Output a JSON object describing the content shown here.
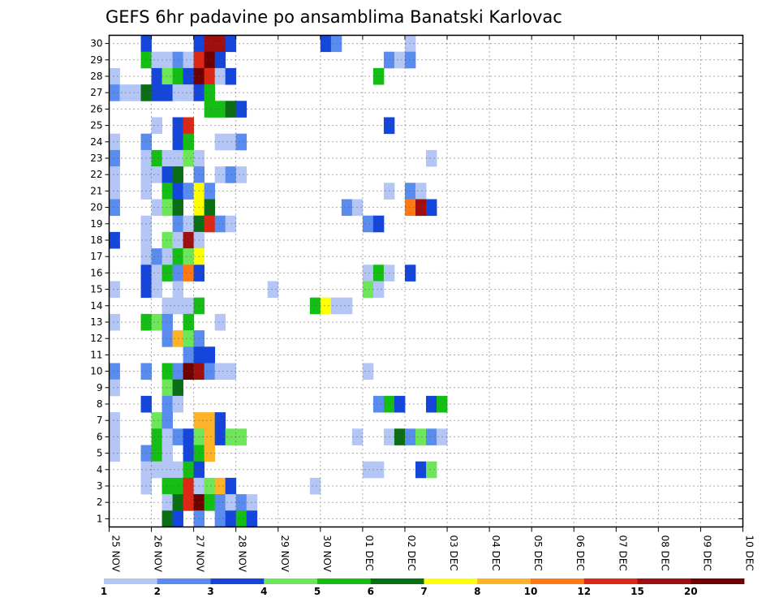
{
  "chart_data": {
    "type": "heatmap",
    "title": "GEFS 6hr padavine po ansamblima Banatski Karlovac",
    "x_tick_labels": [
      "25 NOV",
      "26 NOV",
      "27 NOV",
      "28 NOV",
      "29 NOV",
      "30 NOV",
      "01 DEC",
      "02 DEC",
      "03 DEC",
      "04 DEC",
      "05 DEC",
      "06 DEC",
      "07 DEC",
      "08 DEC",
      "09 DEC",
      "10 DEC"
    ],
    "y_tick_labels": [
      "1",
      "2",
      "3",
      "4",
      "5",
      "6",
      "7",
      "8",
      "9",
      "10",
      "11",
      "12",
      "13",
      "14",
      "15",
      "16",
      "17",
      "18",
      "19",
      "20",
      "21",
      "22",
      "23",
      "24",
      "25",
      "26",
      "27",
      "28",
      "29",
      "30"
    ],
    "time_steps_per_day": 4,
    "n_members": 30,
    "legend": {
      "labels": [
        "1",
        "2",
        "3",
        "4",
        "5",
        "6",
        "7",
        "8",
        "10",
        "12",
        "15",
        "20"
      ],
      "colors": [
        "#b4c6f5",
        "#5a8cf0",
        "#1446dc",
        "#6ee65a",
        "#14be14",
        "#0a6e14",
        "#ffff00",
        "#ffb428",
        "#ff7814",
        "#dc2814",
        "#a00f0f",
        "#6e0000"
      ]
    },
    "cells": [
      {
        "m": 30,
        "t": [
          [
            3,
            3
          ],
          [
            8,
            3
          ],
          [
            9,
            11
          ],
          [
            10,
            11
          ],
          [
            11,
            3
          ],
          [
            20,
            3
          ],
          [
            21,
            2
          ],
          [
            28,
            1
          ]
        ]
      },
      {
        "m": 29,
        "t": [
          [
            3,
            5
          ],
          [
            4,
            1
          ],
          [
            5,
            1
          ],
          [
            6,
            2
          ],
          [
            7,
            1
          ],
          [
            8,
            10
          ],
          [
            9,
            12
          ],
          [
            10,
            3
          ],
          [
            26,
            2
          ],
          [
            27,
            1
          ],
          [
            28,
            2
          ]
        ]
      },
      {
        "m": 28,
        "t": [
          [
            0,
            1
          ],
          [
            4,
            3
          ],
          [
            5,
            4
          ],
          [
            6,
            5
          ],
          [
            7,
            3
          ],
          [
            8,
            12
          ],
          [
            9,
            10
          ],
          [
            10,
            1
          ],
          [
            11,
            3
          ],
          [
            25,
            5
          ]
        ]
      },
      {
        "m": 27,
        "t": [
          [
            0,
            2
          ],
          [
            1,
            1
          ],
          [
            2,
            1
          ],
          [
            3,
            6
          ],
          [
            4,
            3
          ],
          [
            5,
            3
          ],
          [
            6,
            1
          ],
          [
            7,
            1
          ],
          [
            8,
            3
          ],
          [
            9,
            5
          ]
        ]
      },
      {
        "m": 26,
        "t": [
          [
            9,
            5
          ],
          [
            10,
            5
          ],
          [
            11,
            6
          ],
          [
            12,
            3
          ]
        ]
      },
      {
        "m": 25,
        "t": [
          [
            4,
            1
          ],
          [
            6,
            3
          ],
          [
            7,
            10
          ],
          [
            26,
            3
          ]
        ]
      },
      {
        "m": 24,
        "t": [
          [
            0,
            1
          ],
          [
            3,
            2
          ],
          [
            6,
            3
          ],
          [
            7,
            5
          ],
          [
            10,
            1
          ],
          [
            11,
            1
          ],
          [
            12,
            2
          ]
        ]
      },
      {
        "m": 23,
        "t": [
          [
            0,
            2
          ],
          [
            3,
            1
          ],
          [
            4,
            5
          ],
          [
            5,
            1
          ],
          [
            6,
            1
          ],
          [
            7,
            4
          ],
          [
            8,
            1
          ],
          [
            30,
            1
          ]
        ]
      },
      {
        "m": 22,
        "t": [
          [
            0,
            1
          ],
          [
            3,
            1
          ],
          [
            4,
            1
          ],
          [
            5,
            3
          ],
          [
            6,
            6
          ],
          [
            8,
            2
          ],
          [
            10,
            1
          ],
          [
            11,
            2
          ],
          [
            12,
            1
          ]
        ]
      },
      {
        "m": 21,
        "t": [
          [
            0,
            1
          ],
          [
            3,
            1
          ],
          [
            5,
            5
          ],
          [
            6,
            3
          ],
          [
            7,
            2
          ],
          [
            8,
            7
          ],
          [
            9,
            2
          ],
          [
            26,
            1
          ],
          [
            28,
            2
          ],
          [
            29,
            1
          ]
        ]
      },
      {
        "m": 20,
        "t": [
          [
            0,
            2
          ],
          [
            4,
            1
          ],
          [
            5,
            4
          ],
          [
            6,
            6
          ],
          [
            8,
            7
          ],
          [
            9,
            6
          ],
          [
            22,
            2
          ],
          [
            23,
            1
          ],
          [
            28,
            9
          ],
          [
            29,
            11
          ],
          [
            30,
            3
          ]
        ]
      },
      {
        "m": 19,
        "t": [
          [
            3,
            1
          ],
          [
            6,
            2
          ],
          [
            7,
            1
          ],
          [
            8,
            6
          ],
          [
            9,
            10
          ],
          [
            10,
            2
          ],
          [
            11,
            1
          ],
          [
            24,
            2
          ],
          [
            25,
            3
          ]
        ]
      },
      {
        "m": 18,
        "t": [
          [
            0,
            3
          ],
          [
            3,
            1
          ],
          [
            5,
            4
          ],
          [
            6,
            1
          ],
          [
            7,
            11
          ],
          [
            8,
            1
          ]
        ]
      },
      {
        "m": 17,
        "t": [
          [
            3,
            1
          ],
          [
            4,
            2
          ],
          [
            5,
            1
          ],
          [
            6,
            5
          ],
          [
            7,
            4
          ],
          [
            8,
            7
          ]
        ]
      },
      {
        "m": 16,
        "t": [
          [
            3,
            3
          ],
          [
            4,
            1
          ],
          [
            5,
            5
          ],
          [
            6,
            2
          ],
          [
            7,
            9
          ],
          [
            8,
            3
          ],
          [
            24,
            1
          ],
          [
            25,
            5
          ],
          [
            26,
            1
          ],
          [
            28,
            3
          ]
        ]
      },
      {
        "m": 15,
        "t": [
          [
            0,
            1
          ],
          [
            3,
            3
          ],
          [
            4,
            1
          ],
          [
            6,
            1
          ],
          [
            15,
            1
          ],
          [
            24,
            4
          ],
          [
            25,
            1
          ]
        ]
      },
      {
        "m": 14,
        "t": [
          [
            5,
            1
          ],
          [
            6,
            1
          ],
          [
            7,
            1
          ],
          [
            8,
            5
          ],
          [
            19,
            5
          ],
          [
            20,
            7
          ],
          [
            21,
            1
          ],
          [
            22,
            1
          ]
        ]
      },
      {
        "m": 13,
        "t": [
          [
            0,
            1
          ],
          [
            3,
            5
          ],
          [
            4,
            4
          ],
          [
            5,
            2
          ],
          [
            7,
            5
          ],
          [
            10,
            1
          ]
        ]
      },
      {
        "m": 12,
        "t": [
          [
            5,
            2
          ],
          [
            6,
            8
          ],
          [
            7,
            4
          ],
          [
            8,
            2
          ]
        ]
      },
      {
        "m": 11,
        "t": [
          [
            7,
            2
          ],
          [
            8,
            3
          ],
          [
            9,
            3
          ]
        ]
      },
      {
        "m": 10,
        "t": [
          [
            0,
            2
          ],
          [
            3,
            2
          ],
          [
            5,
            5
          ],
          [
            6,
            2
          ],
          [
            7,
            12
          ],
          [
            8,
            11
          ],
          [
            9,
            2
          ],
          [
            10,
            1
          ],
          [
            11,
            1
          ],
          [
            24,
            1
          ]
        ]
      },
      {
        "m": 9,
        "t": [
          [
            0,
            1
          ],
          [
            5,
            4
          ],
          [
            6,
            6
          ]
        ]
      },
      {
        "m": 8,
        "t": [
          [
            3,
            3
          ],
          [
            5,
            2
          ],
          [
            6,
            1
          ],
          [
            25,
            2
          ],
          [
            26,
            5
          ],
          [
            27,
            3
          ],
          [
            30,
            3
          ],
          [
            31,
            5
          ]
        ]
      },
      {
        "m": 7,
        "t": [
          [
            0,
            1
          ],
          [
            4,
            4
          ],
          [
            5,
            2
          ],
          [
            8,
            8
          ],
          [
            9,
            8
          ],
          [
            10,
            3
          ]
        ]
      },
      {
        "m": 6,
        "t": [
          [
            0,
            1
          ],
          [
            4,
            5
          ],
          [
            5,
            1
          ],
          [
            6,
            2
          ],
          [
            7,
            3
          ],
          [
            8,
            4
          ],
          [
            9,
            8
          ],
          [
            10,
            3
          ],
          [
            11,
            4
          ],
          [
            12,
            4
          ],
          [
            23,
            1
          ],
          [
            26,
            1
          ],
          [
            27,
            6
          ],
          [
            28,
            2
          ],
          [
            29,
            4
          ],
          [
            30,
            2
          ],
          [
            31,
            1
          ]
        ]
      },
      {
        "m": 5,
        "t": [
          [
            0,
            1
          ],
          [
            3,
            2
          ],
          [
            4,
            5
          ],
          [
            5,
            1
          ],
          [
            7,
            3
          ],
          [
            8,
            5
          ],
          [
            9,
            8
          ]
        ]
      },
      {
        "m": 4,
        "t": [
          [
            3,
            1
          ],
          [
            4,
            1
          ],
          [
            5,
            1
          ],
          [
            6,
            1
          ],
          [
            7,
            5
          ],
          [
            8,
            3
          ],
          [
            24,
            1
          ],
          [
            25,
            1
          ],
          [
            29,
            3
          ],
          [
            30,
            4
          ]
        ]
      },
      {
        "m": 3,
        "t": [
          [
            3,
            1
          ],
          [
            5,
            5
          ],
          [
            6,
            5
          ],
          [
            7,
            10
          ],
          [
            8,
            1
          ],
          [
            9,
            4
          ],
          [
            10,
            8
          ],
          [
            11,
            3
          ],
          [
            19,
            1
          ]
        ]
      },
      {
        "m": 2,
        "t": [
          [
            5,
            1
          ],
          [
            6,
            6
          ],
          [
            7,
            10
          ],
          [
            8,
            12
          ],
          [
            9,
            5
          ],
          [
            10,
            2
          ],
          [
            11,
            1
          ],
          [
            12,
            2
          ],
          [
            13,
            1
          ]
        ]
      },
      {
        "m": 1,
        "t": [
          [
            5,
            6
          ],
          [
            6,
            3
          ],
          [
            8,
            2
          ],
          [
            10,
            2
          ],
          [
            11,
            3
          ],
          [
            12,
            5
          ],
          [
            13,
            3
          ]
        ]
      }
    ]
  }
}
